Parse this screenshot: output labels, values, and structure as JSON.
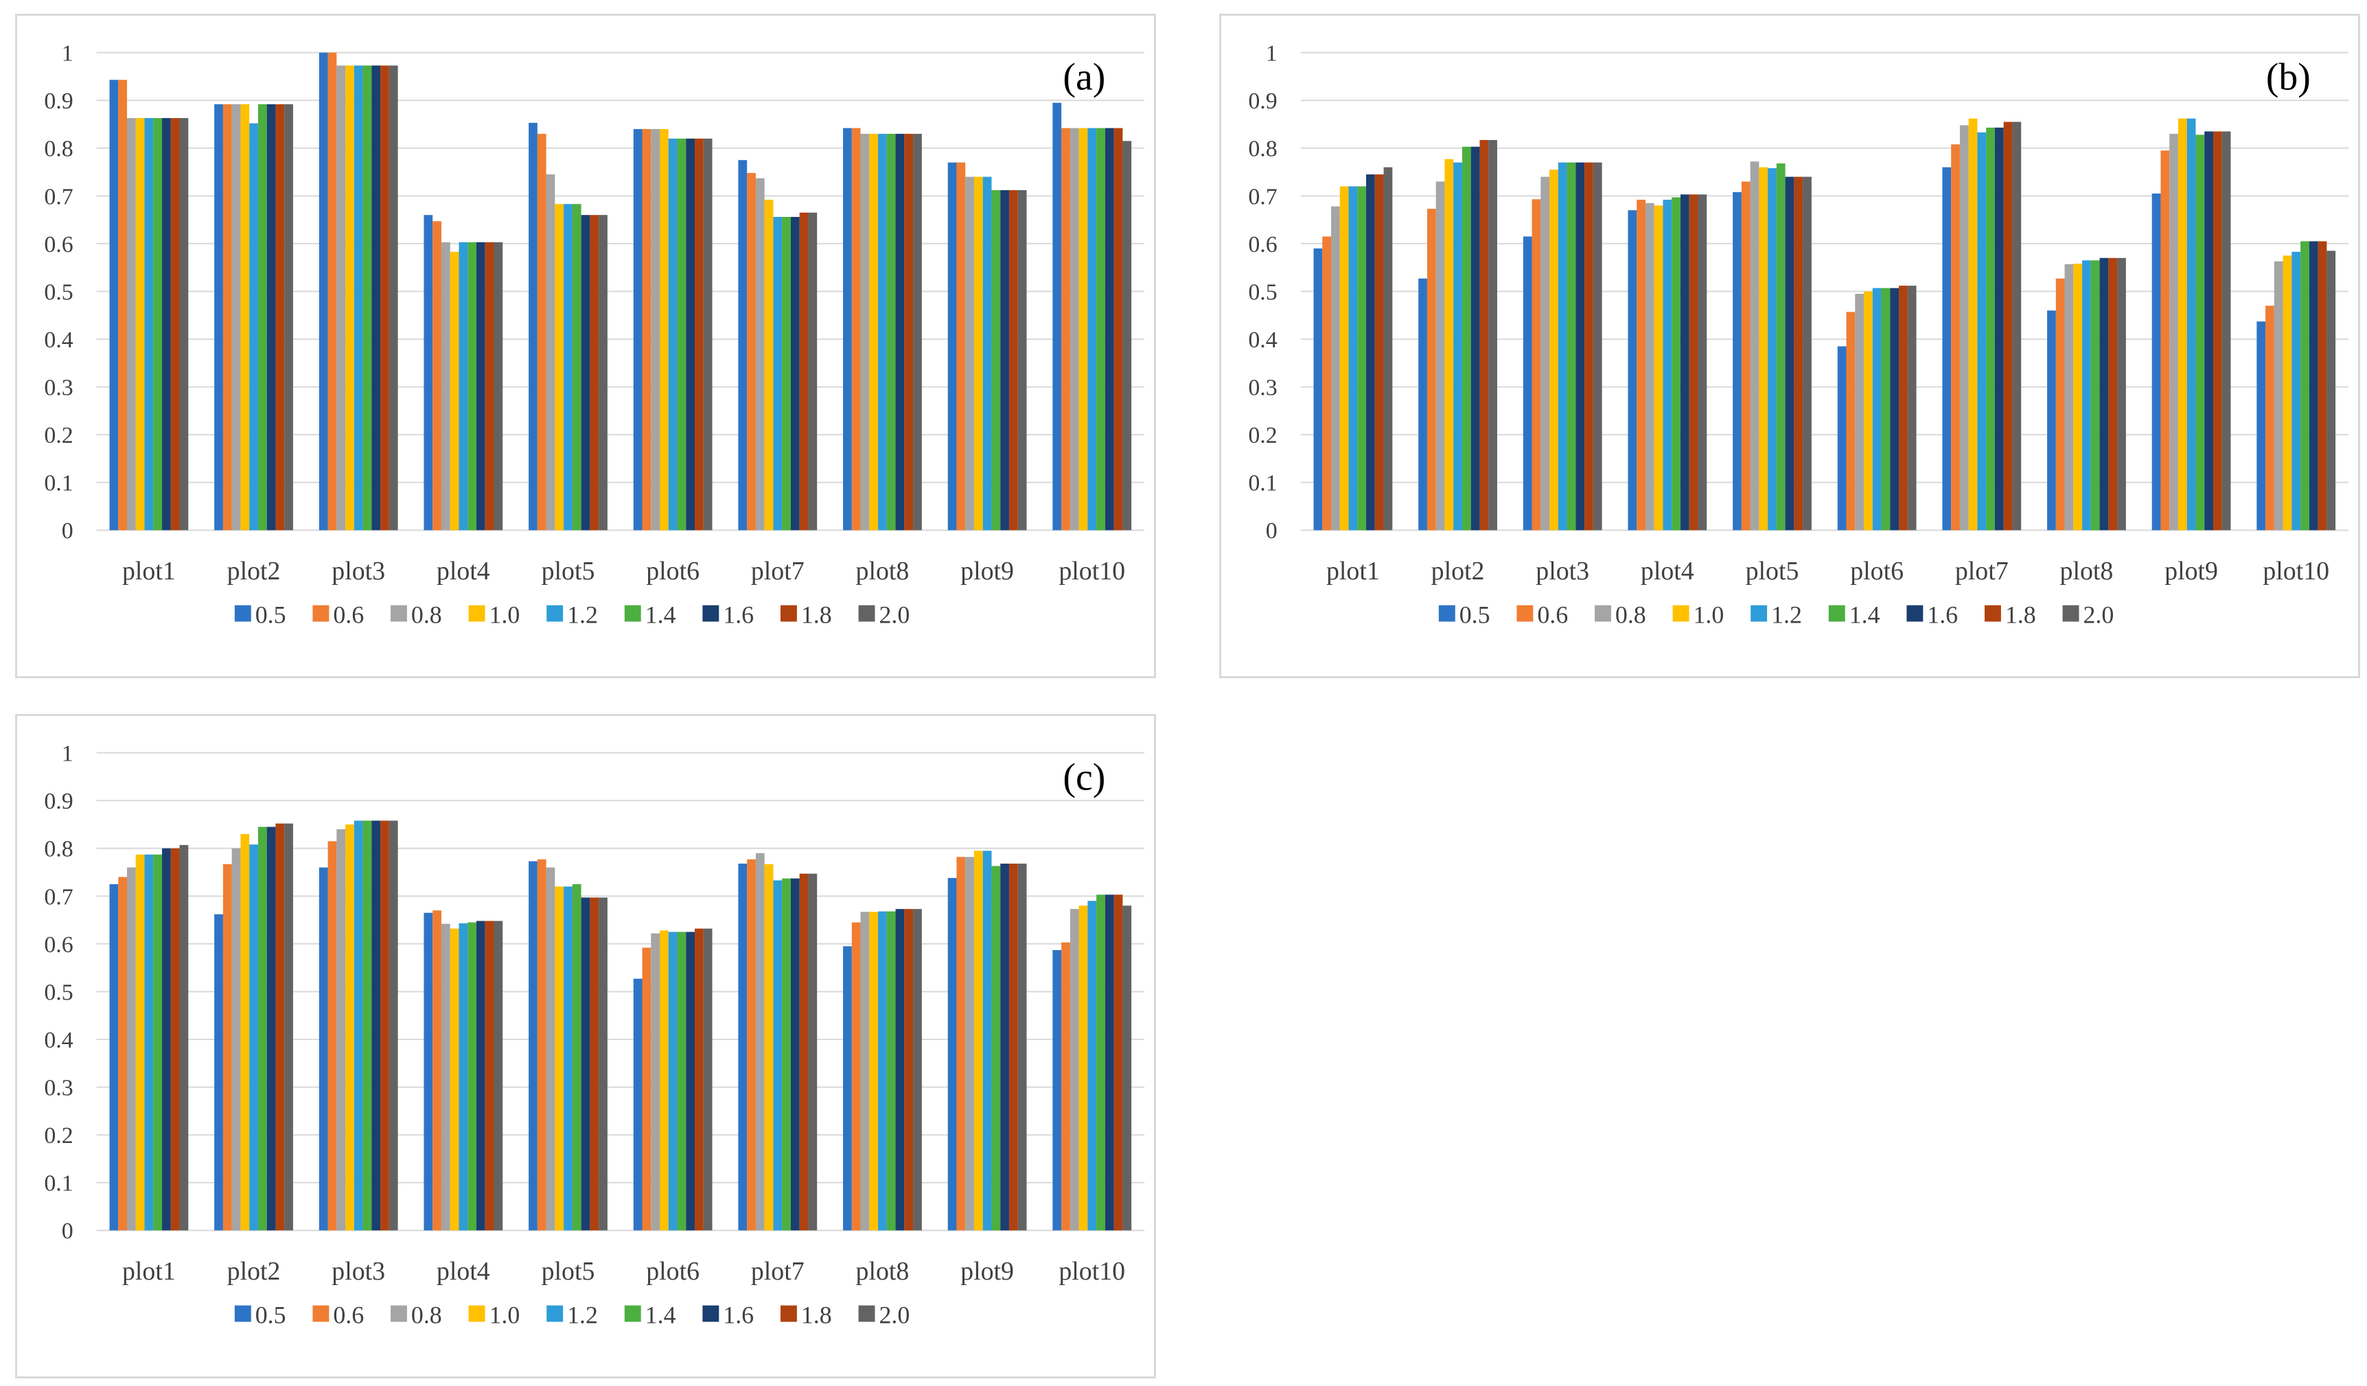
{
  "chart_data": [
    {
      "type": "bar",
      "title": "(a)",
      "categories": [
        "plot1",
        "plot2",
        "plot3",
        "plot4",
        "plot5",
        "plot6",
        "plot7",
        "plot8",
        "plot9",
        "plot10"
      ],
      "ylim": [
        0,
        1
      ],
      "yticks": [
        "0",
        "0.1",
        "0.2",
        "0.3",
        "0.4",
        "0.5",
        "0.6",
        "0.7",
        "0.8",
        "0.9",
        "1"
      ],
      "grid": true,
      "legend": "bottom",
      "series": [
        {
          "name": "0.5",
          "color": "#2e74c6",
          "values": [
            0.943,
            0.892,
            1.0,
            0.66,
            0.853,
            0.84,
            0.775,
            0.842,
            0.77,
            0.895
          ]
        },
        {
          "name": "0.6",
          "color": "#f07d32",
          "values": [
            0.943,
            0.892,
            1.0,
            0.647,
            0.83,
            0.84,
            0.748,
            0.842,
            0.77,
            0.842
          ]
        },
        {
          "name": "0.8",
          "color": "#a5a5a5",
          "values": [
            0.863,
            0.892,
            0.973,
            0.603,
            0.745,
            0.84,
            0.737,
            0.83,
            0.74,
            0.842
          ]
        },
        {
          "name": "1.0",
          "color": "#ffc000",
          "values": [
            0.863,
            0.892,
            0.973,
            0.583,
            0.683,
            0.84,
            0.692,
            0.83,
            0.74,
            0.842
          ]
        },
        {
          "name": "1.2",
          "color": "#2e9dd9",
          "values": [
            0.863,
            0.852,
            0.973,
            0.603,
            0.683,
            0.82,
            0.656,
            0.83,
            0.74,
            0.842
          ]
        },
        {
          "name": "1.4",
          "color": "#4caf3f",
          "values": [
            0.863,
            0.892,
            0.973,
            0.603,
            0.683,
            0.82,
            0.656,
            0.83,
            0.712,
            0.842
          ]
        },
        {
          "name": "1.6",
          "color": "#1a3f70",
          "values": [
            0.863,
            0.892,
            0.973,
            0.603,
            0.66,
            0.82,
            0.656,
            0.83,
            0.712,
            0.842
          ]
        },
        {
          "name": "1.8",
          "color": "#b0420f",
          "values": [
            0.863,
            0.892,
            0.973,
            0.603,
            0.66,
            0.82,
            0.665,
            0.83,
            0.712,
            0.842
          ]
        },
        {
          "name": "2.0",
          "color": "#636363",
          "values": [
            0.863,
            0.892,
            0.973,
            0.603,
            0.66,
            0.82,
            0.665,
            0.83,
            0.712,
            0.815
          ]
        }
      ]
    },
    {
      "type": "bar",
      "title": "(b)",
      "categories": [
        "plot1",
        "plot2",
        "plot3",
        "plot4",
        "plot5",
        "plot6",
        "plot7",
        "plot8",
        "plot9",
        "plot10"
      ],
      "ylim": [
        0,
        1
      ],
      "yticks": [
        "0",
        "0.1",
        "0.2",
        "0.3",
        "0.4",
        "0.5",
        "0.6",
        "0.7",
        "0.8",
        "0.9",
        "1"
      ],
      "grid": true,
      "legend": "bottom",
      "series": [
        {
          "name": "0.5",
          "color": "#2e74c6",
          "values": [
            0.59,
            0.527,
            0.615,
            0.67,
            0.708,
            0.385,
            0.76,
            0.46,
            0.705,
            0.437
          ]
        },
        {
          "name": "0.6",
          "color": "#f07d32",
          "values": [
            0.615,
            0.673,
            0.693,
            0.692,
            0.73,
            0.457,
            0.808,
            0.527,
            0.795,
            0.47
          ]
        },
        {
          "name": "0.8",
          "color": "#a5a5a5",
          "values": [
            0.678,
            0.73,
            0.74,
            0.685,
            0.772,
            0.495,
            0.848,
            0.557,
            0.83,
            0.563
          ]
        },
        {
          "name": "1.0",
          "color": "#ffc000",
          "values": [
            0.72,
            0.777,
            0.755,
            0.68,
            0.76,
            0.5,
            0.862,
            0.558,
            0.862,
            0.575
          ]
        },
        {
          "name": "1.2",
          "color": "#2e9dd9",
          "values": [
            0.72,
            0.77,
            0.77,
            0.692,
            0.758,
            0.507,
            0.833,
            0.565,
            0.862,
            0.583
          ]
        },
        {
          "name": "1.4",
          "color": "#4caf3f",
          "values": [
            0.72,
            0.803,
            0.77,
            0.697,
            0.768,
            0.507,
            0.843,
            0.565,
            0.828,
            0.605
          ]
        },
        {
          "name": "1.6",
          "color": "#1a3f70",
          "values": [
            0.745,
            0.803,
            0.77,
            0.703,
            0.74,
            0.507,
            0.843,
            0.57,
            0.835,
            0.605
          ]
        },
        {
          "name": "1.8",
          "color": "#b0420f",
          "values": [
            0.745,
            0.817,
            0.77,
            0.703,
            0.74,
            0.512,
            0.855,
            0.57,
            0.835,
            0.605
          ]
        },
        {
          "name": "2.0",
          "color": "#636363",
          "values": [
            0.76,
            0.817,
            0.77,
            0.703,
            0.74,
            0.512,
            0.855,
            0.57,
            0.835,
            0.585
          ]
        }
      ]
    },
    {
      "type": "bar",
      "title": "(c)",
      "categories": [
        "plot1",
        "plot2",
        "plot3",
        "plot4",
        "plot5",
        "plot6",
        "plot7",
        "plot8",
        "plot9",
        "plot10"
      ],
      "ylim": [
        0,
        1
      ],
      "yticks": [
        "0",
        "0.1",
        "0.2",
        "0.3",
        "0.4",
        "0.5",
        "0.6",
        "0.7",
        "0.8",
        "0.9",
        "1"
      ],
      "grid": true,
      "legend": "bottom",
      "series": [
        {
          "name": "0.5",
          "color": "#2e74c6",
          "values": [
            0.725,
            0.662,
            0.76,
            0.665,
            0.773,
            0.527,
            0.768,
            0.595,
            0.738,
            0.587
          ]
        },
        {
          "name": "0.6",
          "color": "#f07d32",
          "values": [
            0.74,
            0.767,
            0.815,
            0.67,
            0.777,
            0.592,
            0.777,
            0.645,
            0.782,
            0.603
          ]
        },
        {
          "name": "0.8",
          "color": "#a5a5a5",
          "values": [
            0.76,
            0.8,
            0.84,
            0.642,
            0.76,
            0.622,
            0.79,
            0.667,
            0.782,
            0.673
          ]
        },
        {
          "name": "1.0",
          "color": "#ffc000",
          "values": [
            0.787,
            0.83,
            0.85,
            0.632,
            0.72,
            0.628,
            0.767,
            0.667,
            0.795,
            0.68
          ]
        },
        {
          "name": "1.2",
          "color": "#2e9dd9",
          "values": [
            0.787,
            0.808,
            0.858,
            0.643,
            0.72,
            0.625,
            0.733,
            0.668,
            0.795,
            0.69
          ]
        },
        {
          "name": "1.4",
          "color": "#4caf3f",
          "values": [
            0.787,
            0.845,
            0.858,
            0.645,
            0.725,
            0.625,
            0.737,
            0.668,
            0.763,
            0.703
          ]
        },
        {
          "name": "1.6",
          "color": "#1a3f70",
          "values": [
            0.8,
            0.845,
            0.858,
            0.648,
            0.697,
            0.625,
            0.737,
            0.673,
            0.768,
            0.703
          ]
        },
        {
          "name": "1.8",
          "color": "#b0420f",
          "values": [
            0.8,
            0.852,
            0.858,
            0.648,
            0.697,
            0.632,
            0.747,
            0.673,
            0.768,
            0.703
          ]
        },
        {
          "name": "2.0",
          "color": "#636363",
          "values": [
            0.807,
            0.852,
            0.858,
            0.648,
            0.697,
            0.632,
            0.747,
            0.673,
            0.768,
            0.68
          ]
        }
      ]
    }
  ]
}
